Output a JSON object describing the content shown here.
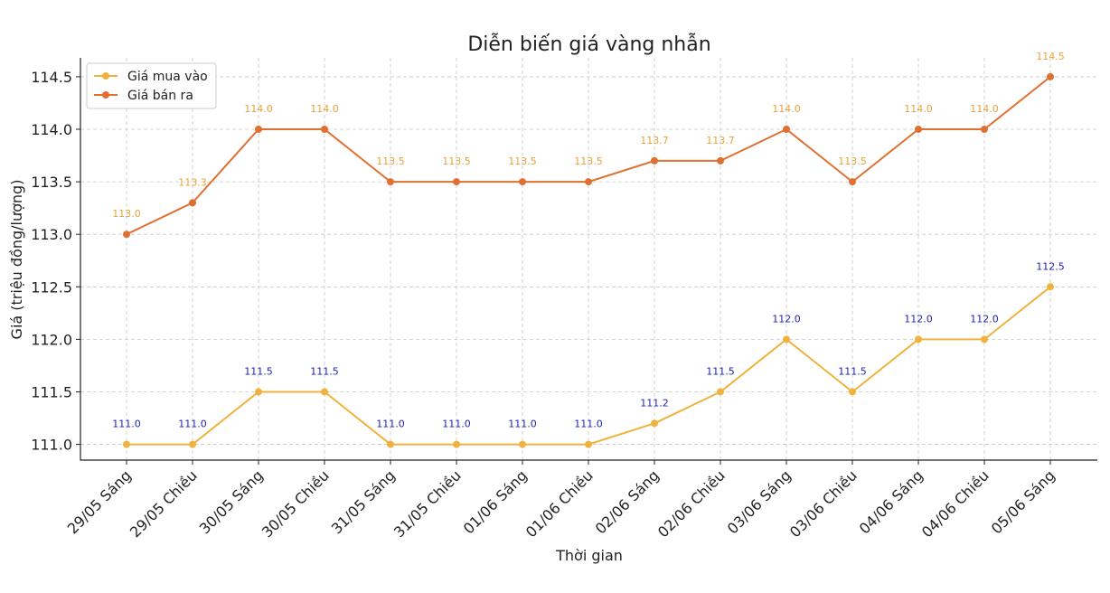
{
  "chart_data": {
    "type": "line",
    "title": "Diễn biến giá vàng nhẫn",
    "xlabel": "Thời gian",
    "ylabel": "Giá (triệu đồng/lượng)",
    "categories": [
      "29/05 Sáng",
      "29/05 Chiều",
      "30/05 Sáng",
      "30/05 Chiều",
      "31/05 Sáng",
      "31/05 Chiều",
      "01/06 Sáng",
      "01/06 Chiều",
      "02/06 Sáng",
      "02/06 Chiều",
      "03/06 Sáng",
      "03/06 Chiều",
      "04/06 Sáng",
      "04/06 Chiều",
      "05/06 Sáng"
    ],
    "yticks": [
      "111.0",
      "111.5",
      "112.0",
      "112.5",
      "113.0",
      "113.5",
      "114.0",
      "114.5"
    ],
    "ylim": [
      110.85,
      114.68
    ],
    "grid": true,
    "legend_position": "top-left",
    "series": [
      {
        "name": "Giá mua vào",
        "color": "#f0b23e",
        "label_color": "#1f1fb4",
        "values": [
          111.0,
          111.0,
          111.5,
          111.5,
          111.0,
          111.0,
          111.0,
          111.0,
          111.2,
          111.5,
          112.0,
          111.5,
          112.0,
          112.0,
          112.5
        ],
        "labels": [
          "111.0",
          "111.0",
          "111.5",
          "111.5",
          "111.0",
          "111.0",
          "111.0",
          "111.0",
          "111.2",
          "111.5",
          "112.0",
          "111.5",
          "112.0",
          "112.0",
          "112.5"
        ]
      },
      {
        "name": "Giá bán ra",
        "color": "#e07032",
        "label_color": "#e8a23a",
        "values": [
          113.0,
          113.3,
          114.0,
          114.0,
          113.5,
          113.5,
          113.5,
          113.5,
          113.7,
          113.7,
          114.0,
          113.5,
          114.0,
          114.0,
          114.5
        ],
        "labels": [
          "113.0",
          "113.3",
          "114.0",
          "114.0",
          "113.5",
          "113.5",
          "113.5",
          "113.5",
          "113.7",
          "113.7",
          "114.0",
          "113.5",
          "114.0",
          "114.0",
          "114.5"
        ]
      }
    ]
  }
}
